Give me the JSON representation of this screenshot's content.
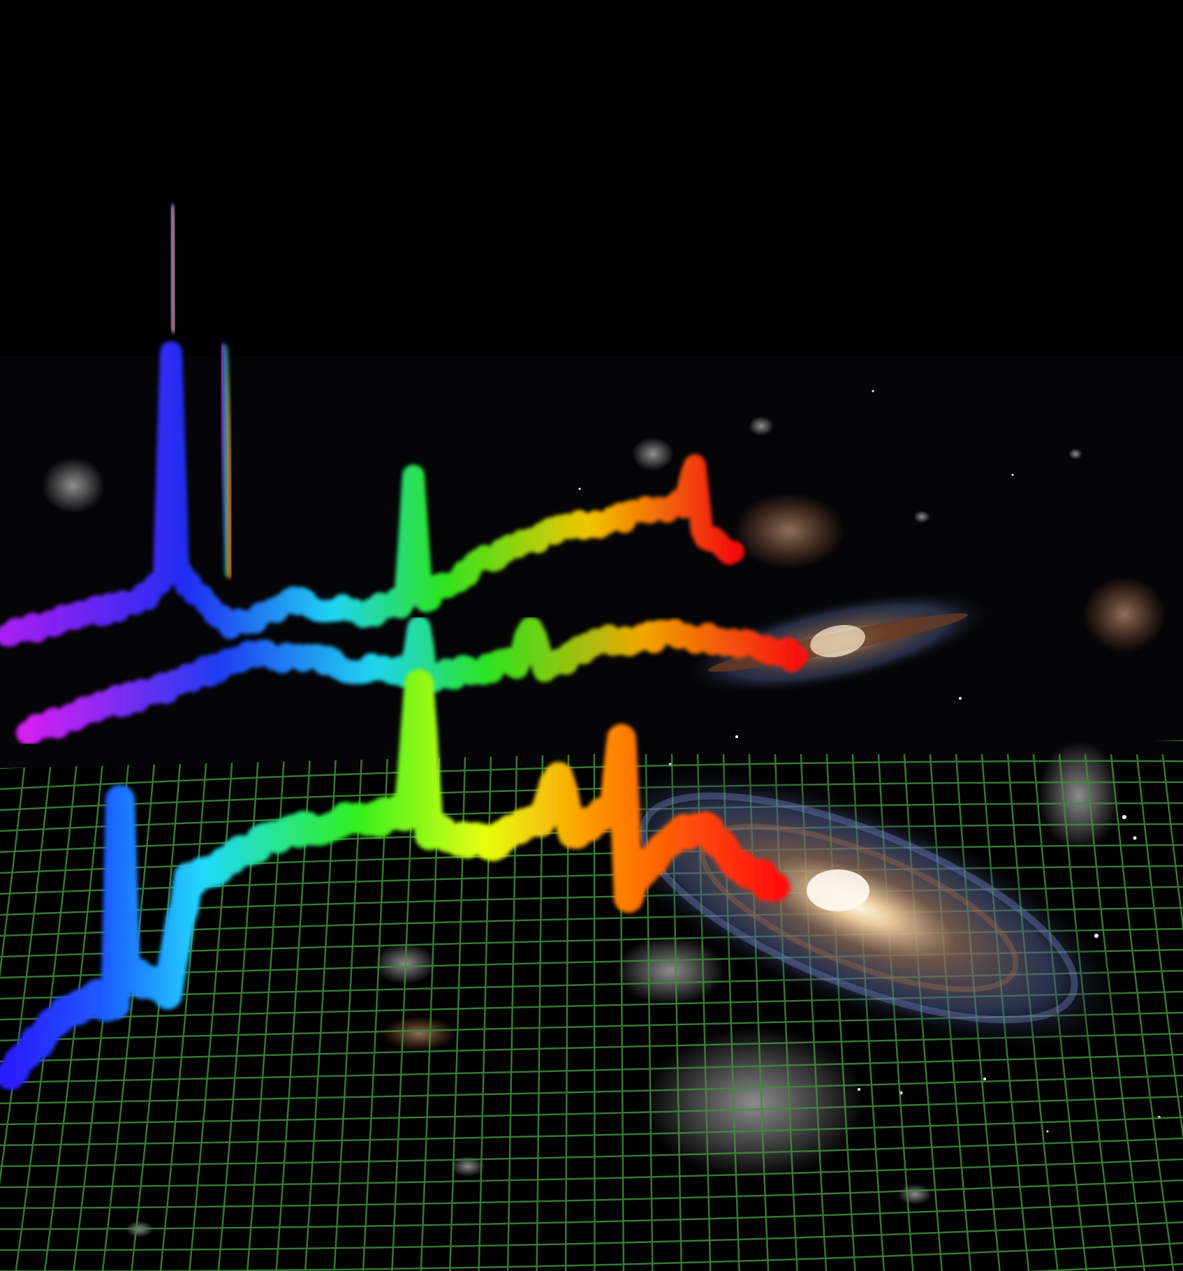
{
  "image": {
    "subject": "spectra-over-galaxies-artwork",
    "colors": {
      "sky": "#000000",
      "grid": "#3f8f3a",
      "spectrum_violet": "#b020ff",
      "spectrum_blue": "#1f3cff",
      "spectrum_cyan": "#20e0ff",
      "spectrum_green": "#30f020",
      "spectrum_yellow": "#e8ff10",
      "spectrum_orange": "#ff8a00",
      "spectrum_red": "#ff1010",
      "galaxy_core": "#fff2d8",
      "galaxy_arm": "#6f87c8",
      "galaxy_dust": "#8a4a2a"
    },
    "elements": [
      {
        "name": "deep-field-background",
        "kind": "background"
      },
      {
        "name": "perspective-grid",
        "kind": "grid"
      },
      {
        "name": "spectrum-back",
        "kind": "spectrum"
      },
      {
        "name": "spectrum-middle",
        "kind": "spectrum"
      },
      {
        "name": "spectrum-front",
        "kind": "spectrum"
      },
      {
        "name": "galaxy-edge-on",
        "kind": "galaxy"
      },
      {
        "name": "galaxy-spiral",
        "kind": "galaxy"
      }
    ]
  }
}
